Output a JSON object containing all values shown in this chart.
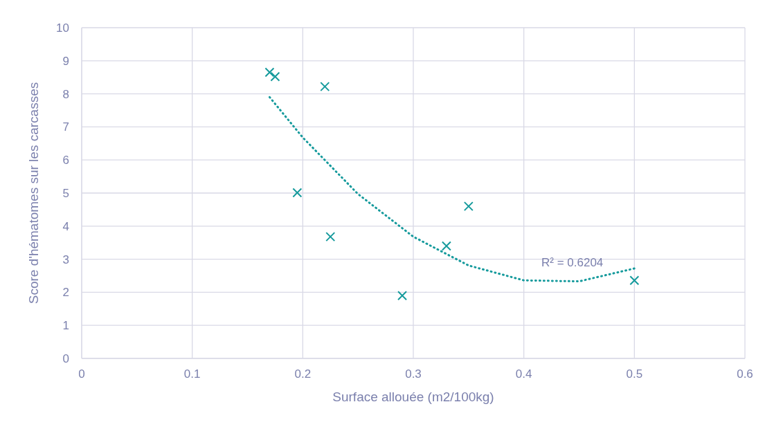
{
  "chart_data": {
    "type": "scatter",
    "xlabel": "Surface allouée (m2/100kg)",
    "ylabel": "Score d'hématomes sur les carcasses",
    "xlim": [
      0,
      0.6
    ],
    "xticks": [
      0,
      0.1,
      0.2,
      0.3,
      0.4,
      0.5,
      0.6
    ],
    "ylim": [
      0,
      10
    ],
    "yticks": [
      0,
      1,
      2,
      3,
      4,
      5,
      6,
      7,
      8,
      9,
      10
    ],
    "grid": true,
    "marker": "cross",
    "series": [
      {
        "color": "#159a9c",
        "x": [
          0.17,
          0.175,
          0.22,
          0.195,
          0.225,
          0.29,
          0.33,
          0.35,
          0.5
        ],
        "values": [
          8.65,
          8.52,
          8.22,
          5.01,
          3.68,
          1.9,
          3.4,
          4.6,
          2.36
        ]
      },
      {
        "type": "line",
        "color": "#159a9c",
        "line_style": "dotted",
        "marker": "none",
        "x": [
          0.17,
          0.2,
          0.25,
          0.3,
          0.35,
          0.4,
          0.45,
          0.5
        ],
        "values": [
          7.9,
          6.68,
          4.97,
          3.68,
          2.81,
          2.36,
          2.33,
          2.72
        ]
      }
    ],
    "annotations": [
      "R² = 0.6204"
    ]
  }
}
